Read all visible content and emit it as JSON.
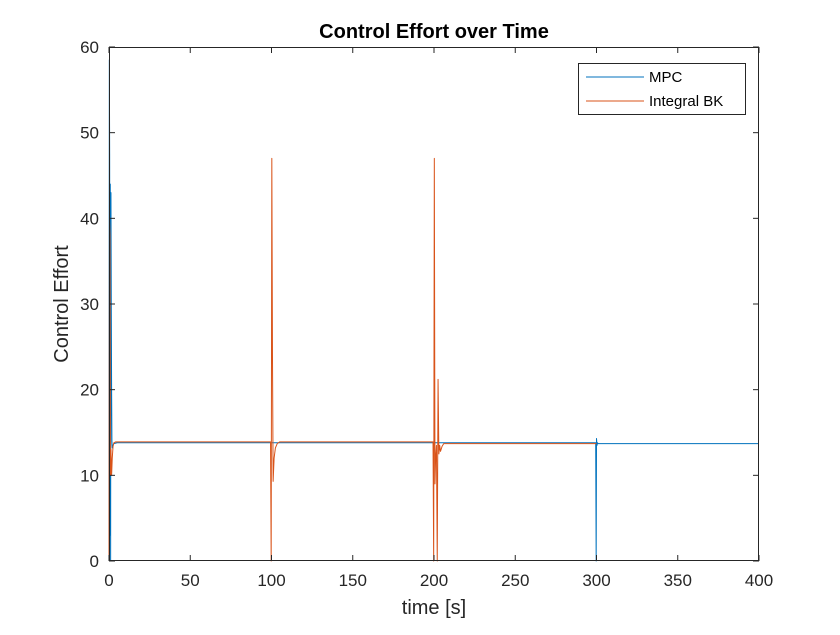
{
  "chart_data": {
    "type": "line",
    "title": "Control Effort over Time",
    "xlabel": "time [s]",
    "ylabel": "Control Effort",
    "xlim": [
      0,
      400
    ],
    "ylim": [
      0,
      60
    ],
    "xticks": [
      0,
      50,
      100,
      150,
      200,
      250,
      300,
      350,
      400
    ],
    "yticks": [
      0,
      10,
      20,
      30,
      40,
      50,
      60
    ],
    "grid": false,
    "legend_position": "top-right",
    "series": [
      {
        "name": "MPC",
        "color": "#0072BD",
        "x": [
          0,
          0.2,
          0.4,
          0.6,
          0.8,
          1.0,
          1.2,
          1.4,
          1.6,
          1.8,
          2.0,
          2.4,
          3,
          5,
          10,
          50,
          100,
          150,
          200,
          250,
          299.5,
          299.8,
          300,
          300.3,
          300.6,
          301,
          320,
          350,
          400
        ],
        "y": [
          0,
          58.5,
          47.5,
          3,
          44,
          0,
          43,
          30,
          20,
          14,
          13.2,
          13.5,
          13.7,
          13.8,
          13.8,
          13.8,
          13.8,
          13.8,
          13.8,
          13.8,
          13.8,
          0,
          14.3,
          13.5,
          13.8,
          13.7,
          13.7,
          13.7,
          13.7
        ]
      },
      {
        "name": "Integral BK",
        "color": "#D95319",
        "x": [
          0,
          0.3,
          0.6,
          0.9,
          1.2,
          1.6,
          2.0,
          2.5,
          3,
          4,
          6,
          10,
          50,
          99.4,
          99.8,
          100.2,
          100.6,
          101,
          101.6,
          102.4,
          103.5,
          105,
          110,
          150,
          199.4,
          199.8,
          200.2,
          200.6,
          201,
          201.5,
          202,
          202.5,
          203,
          203.5,
          204,
          205,
          206,
          210,
          250,
          300
        ],
        "y": [
          0,
          40,
          38,
          10,
          13,
          10,
          12,
          13.4,
          13.8,
          13.9,
          13.9,
          13.9,
          13.9,
          13.9,
          0,
          47,
          24,
          9.3,
          12,
          13.2,
          13.7,
          13.9,
          13.9,
          13.9,
          13.9,
          0,
          47,
          9,
          12,
          13.5,
          0,
          21.2,
          12.5,
          13.5,
          12.8,
          13.4,
          13.7,
          13.7,
          13.7,
          13.7
        ]
      }
    ]
  }
}
